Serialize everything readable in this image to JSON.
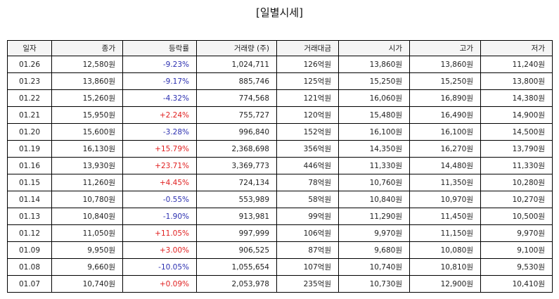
{
  "title": "[일별시세]",
  "colors": {
    "up": "#e02020",
    "down": "#2b2fb0",
    "header_bg": "#f5f5f5",
    "border": "#000000"
  },
  "columns": [
    "일자",
    "종가",
    "등락률",
    "거래량 (주)",
    "거래대금",
    "시가",
    "고가",
    "저가"
  ],
  "rows": [
    {
      "date": "01.26",
      "close": "12,580원",
      "change": "-9.23%",
      "direction": "down",
      "volume": "1,024,711",
      "amount": "126억원",
      "open": "13,860원",
      "high": "13,860원",
      "low": "11,240원"
    },
    {
      "date": "01.23",
      "close": "13,860원",
      "change": "-9.17%",
      "direction": "down",
      "volume": "885,746",
      "amount": "125억원",
      "open": "15,250원",
      "high": "15,250원",
      "low": "13,800원"
    },
    {
      "date": "01.22",
      "close": "15,260원",
      "change": "-4.32%",
      "direction": "down",
      "volume": "774,568",
      "amount": "121억원",
      "open": "16,060원",
      "high": "16,890원",
      "low": "14,380원"
    },
    {
      "date": "01.21",
      "close": "15,950원",
      "change": "+2.24%",
      "direction": "up",
      "volume": "755,727",
      "amount": "120억원",
      "open": "15,480원",
      "high": "16,490원",
      "low": "14,900원"
    },
    {
      "date": "01.20",
      "close": "15,600원",
      "change": "-3.28%",
      "direction": "down",
      "volume": "996,840",
      "amount": "152억원",
      "open": "16,100원",
      "high": "16,100원",
      "low": "14,500원"
    },
    {
      "date": "01.19",
      "close": "16,130원",
      "change": "+15.79%",
      "direction": "up",
      "volume": "2,368,698",
      "amount": "356억원",
      "open": "14,350원",
      "high": "16,270원",
      "low": "13,790원"
    },
    {
      "date": "01.16",
      "close": "13,930원",
      "change": "+23.71%",
      "direction": "up",
      "volume": "3,369,773",
      "amount": "446억원",
      "open": "11,330원",
      "high": "14,480원",
      "low": "11,330원"
    },
    {
      "date": "01.15",
      "close": "11,260원",
      "change": "+4.45%",
      "direction": "up",
      "volume": "724,134",
      "amount": "78억원",
      "open": "10,760원",
      "high": "11,350원",
      "low": "10,280원"
    },
    {
      "date": "01.14",
      "close": "10,780원",
      "change": "-0.55%",
      "direction": "down",
      "volume": "553,989",
      "amount": "58억원",
      "open": "10,840원",
      "high": "10,970원",
      "low": "10,270원"
    },
    {
      "date": "01.13",
      "close": "10,840원",
      "change": "-1.90%",
      "direction": "down",
      "volume": "913,981",
      "amount": "99억원",
      "open": "11,290원",
      "high": "11,450원",
      "low": "10,500원"
    },
    {
      "date": "01.12",
      "close": "11,050원",
      "change": "+11.05%",
      "direction": "up",
      "volume": "997,999",
      "amount": "106억원",
      "open": "9,970원",
      "high": "11,150원",
      "low": "9,970원"
    },
    {
      "date": "01.09",
      "close": "9,950원",
      "change": "+3.00%",
      "direction": "up",
      "volume": "906,525",
      "amount": "87억원",
      "open": "9,680원",
      "high": "10,080원",
      "low": "9,100원"
    },
    {
      "date": "01.08",
      "close": "9,660원",
      "change": "-10.05%",
      "direction": "down",
      "volume": "1,055,654",
      "amount": "107억원",
      "open": "10,740원",
      "high": "10,810원",
      "low": "9,530원"
    },
    {
      "date": "01.07",
      "close": "10,740원",
      "change": "+0.09%",
      "direction": "up",
      "volume": "2,053,978",
      "amount": "235억원",
      "open": "10,730원",
      "high": "12,900원",
      "low": "10,410원"
    }
  ]
}
